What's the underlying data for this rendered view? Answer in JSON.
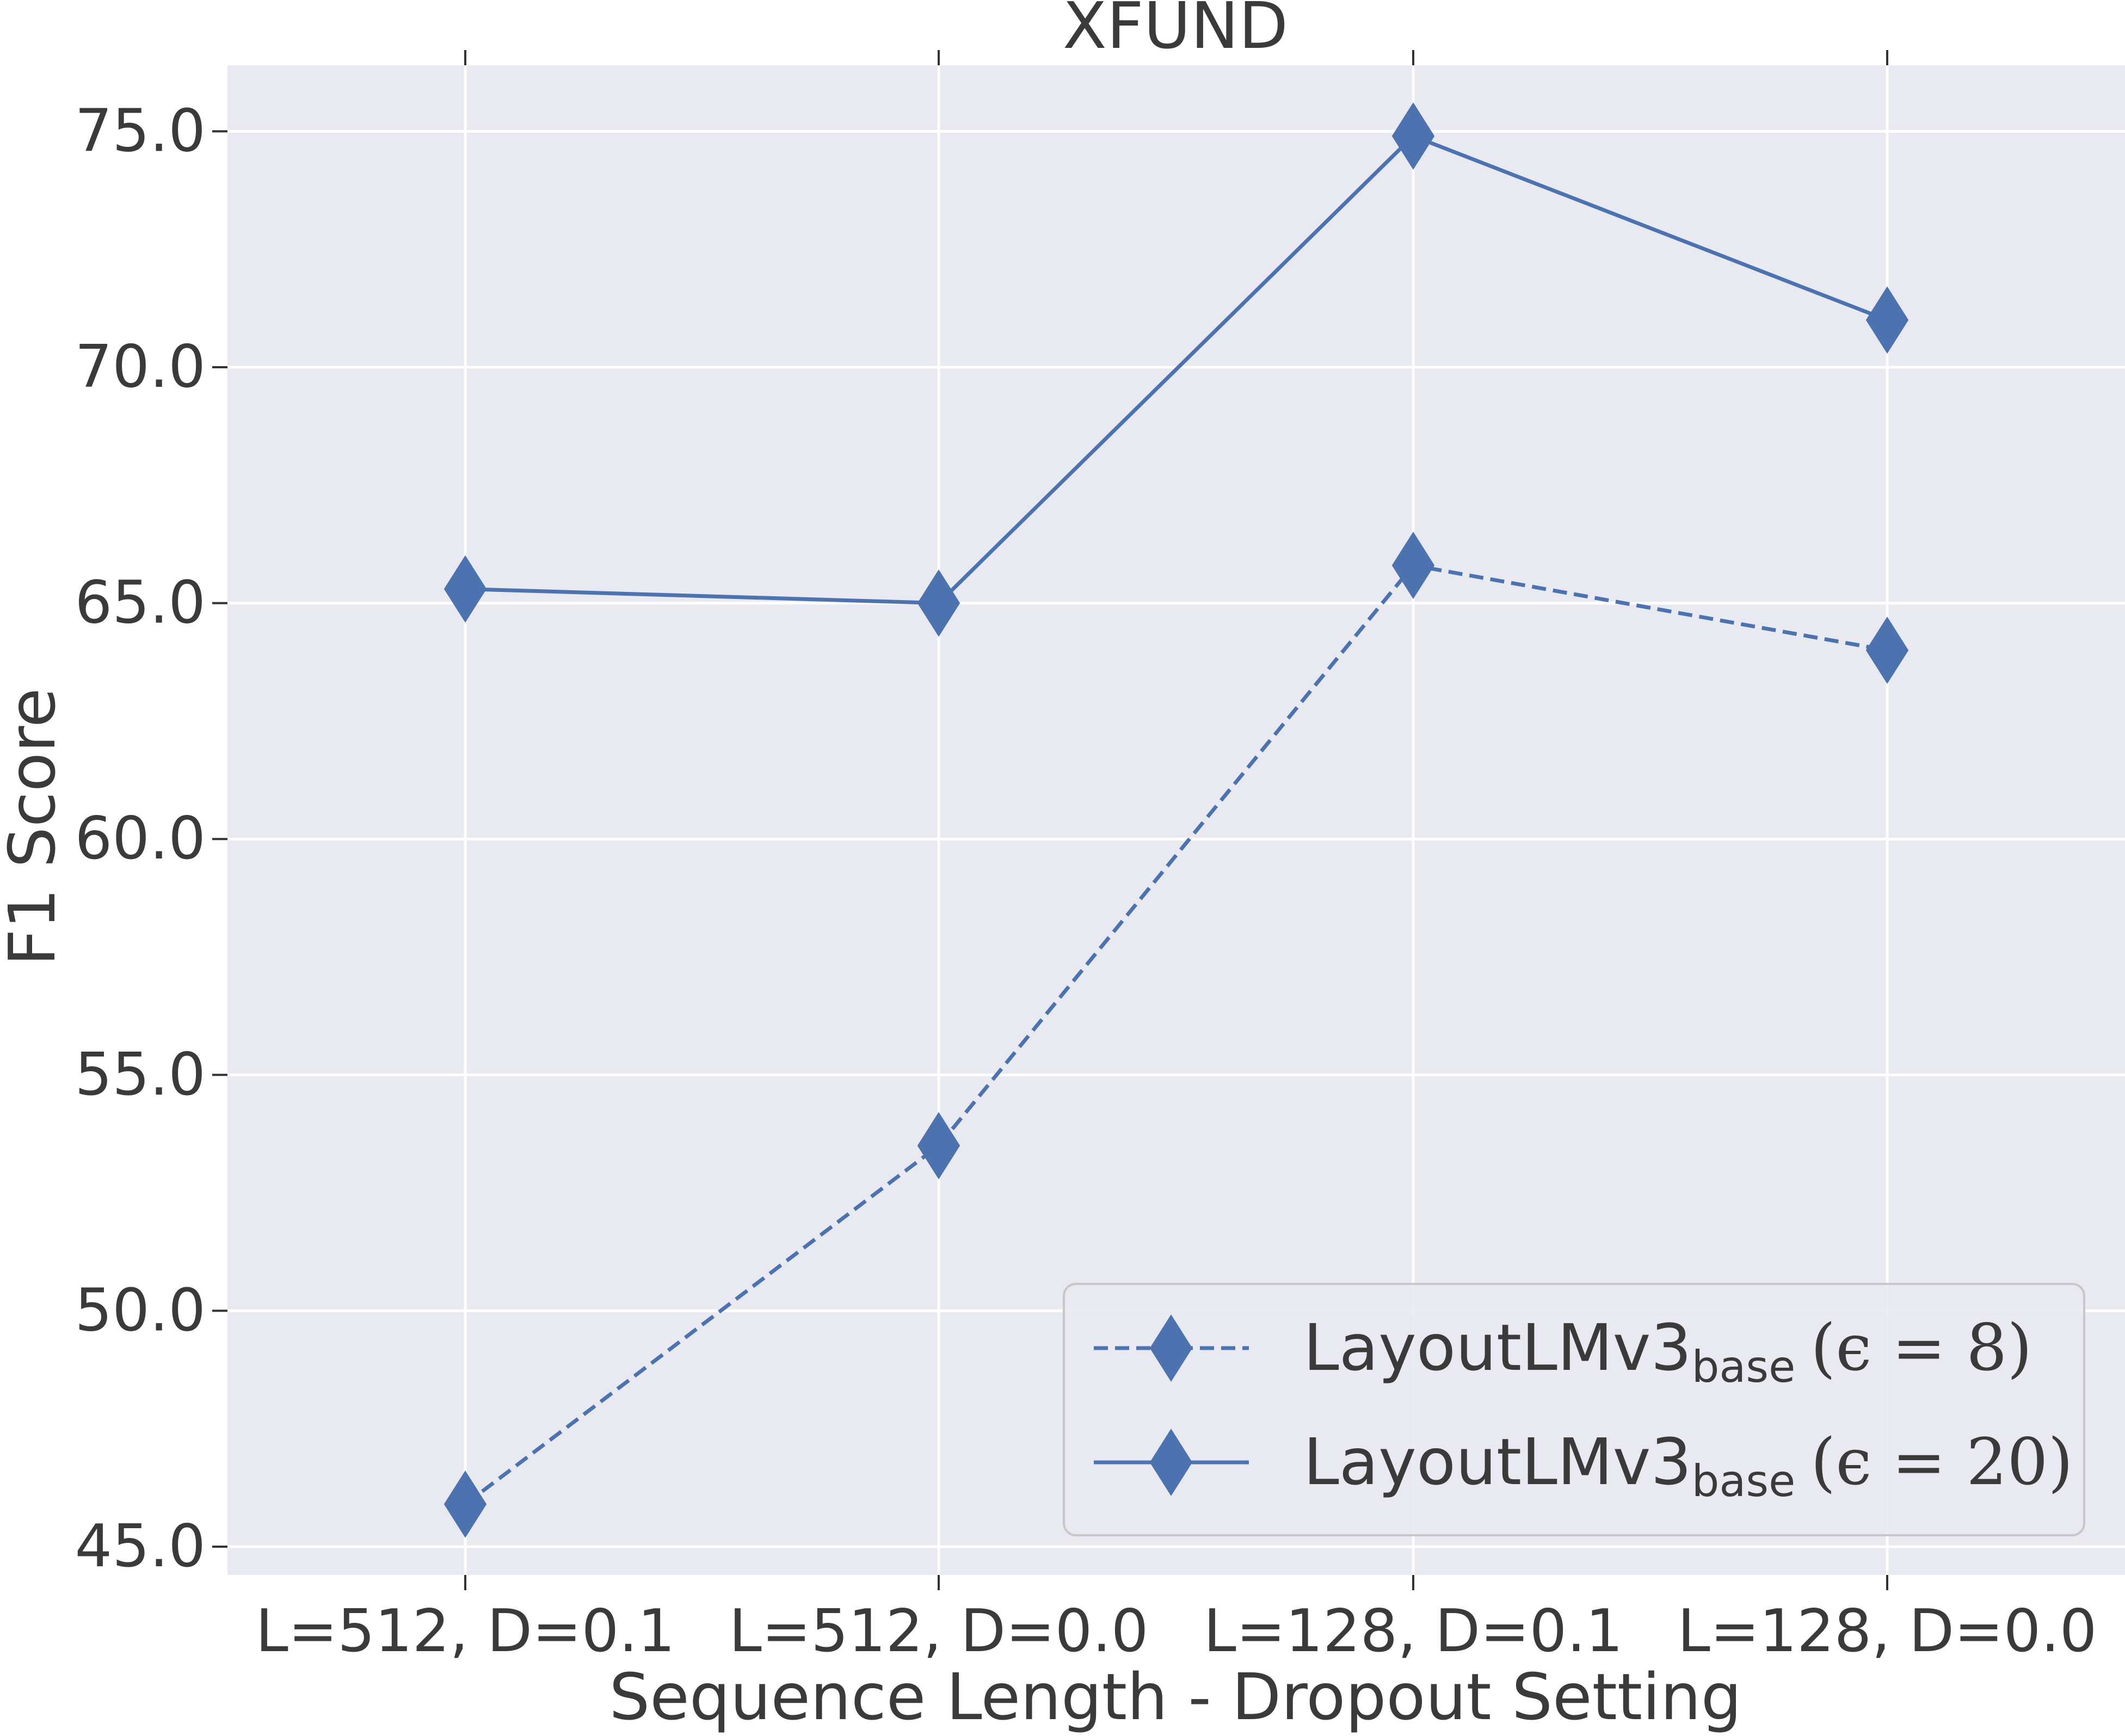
{
  "chart_data": {
    "type": "line",
    "title": "XFUND",
    "xlabel": "Sequence Length - Dropout Setting",
    "ylabel": "F1 Score",
    "categories": [
      "L=512, D=0.1",
      "L=512, D=0.0",
      "L=128, D=0.1",
      "L=128, D=0.0"
    ],
    "ylim": [
      44.4,
      76.4
    ],
    "yticks": [
      "45.0",
      "50.0",
      "55.0",
      "60.0",
      "65.0",
      "70.0",
      "75.0"
    ],
    "ytick_values": [
      45,
      50,
      55,
      60,
      65,
      70,
      75
    ],
    "grid": true,
    "legend_position": "lower-right",
    "series": [
      {
        "name": "LayoutLMv3",
        "name_subscript": "base",
        "name_suffix": "(ϵ = 8)",
        "line_style": "dashed",
        "marker": "diamond",
        "color": "#4c72b0",
        "values": [
          45.9,
          53.5,
          65.8,
          64.0
        ]
      },
      {
        "name": "LayoutLMv3",
        "name_subscript": "base",
        "name_suffix": "(ϵ = 20)",
        "line_style": "solid",
        "marker": "diamond",
        "color": "#4c72b0",
        "values": [
          65.3,
          65.0,
          74.9,
          71.0
        ]
      }
    ]
  },
  "colors": {
    "plot_background": "#e9e9f1",
    "grid": "#ffffff",
    "text": "#3a3a3a"
  }
}
